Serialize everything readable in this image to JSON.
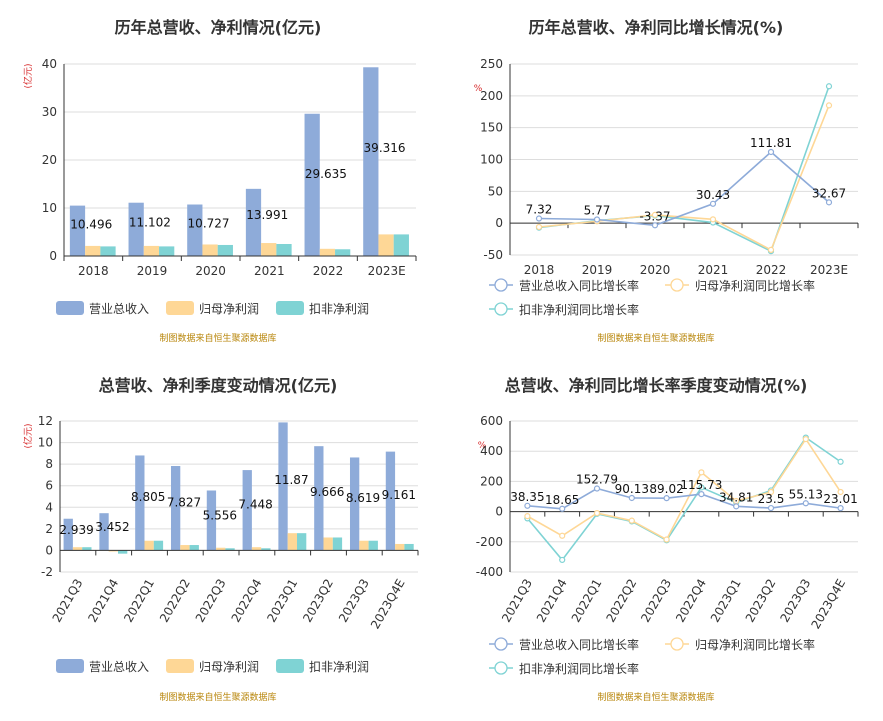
{
  "colors": {
    "revenue": "#8eabd9",
    "netprofit": "#fed796",
    "deducted": "#7fd3d4",
    "grid": "#dddddd",
    "axis": "#333333",
    "source": "#b8860b",
    "unit": "#d62728"
  },
  "source_text": "制图数据来自恒生聚源数据库",
  "chart_data": [
    {
      "type": "bar",
      "title": "历年总营收、净利情况(亿元)",
      "unit_label": "(亿元)",
      "categories": [
        "2018",
        "2019",
        "2020",
        "2021",
        "2022",
        "2023E"
      ],
      "ylim": [
        0,
        40
      ],
      "yticks": [
        0,
        10,
        20,
        30,
        40
      ],
      "series": [
        {
          "name": "营业总收入",
          "values": [
            10.496,
            11.102,
            10.727,
            13.991,
            29.635,
            39.316
          ]
        },
        {
          "name": "归母净利润",
          "values": [
            2.1,
            2.1,
            2.4,
            2.7,
            1.5,
            4.5
          ]
        },
        {
          "name": "扣非净利润",
          "values": [
            2.0,
            2.0,
            2.3,
            2.5,
            1.4,
            4.5
          ]
        }
      ],
      "data_labels": [
        "10.496",
        "11.102",
        "10.727",
        "13.991",
        "29.635",
        "39.316"
      ],
      "legend": "bottom",
      "grid": true
    },
    {
      "type": "line",
      "title": "历年总营收、净利同比增长情况(%)",
      "unit_label": "%",
      "categories": [
        "2018",
        "2019",
        "2020",
        "2021",
        "2022",
        "2023E"
      ],
      "ylim": [
        -50,
        250
      ],
      "yticks": [
        -50,
        0,
        50,
        100,
        150,
        200,
        250
      ],
      "series": [
        {
          "name": "营业总收入同比增长率",
          "values": [
            7.32,
            5.77,
            -3.37,
            30.43,
            111.81,
            32.67
          ]
        },
        {
          "name": "归母净利润同比增长率",
          "values": [
            -6,
            3,
            13,
            6,
            -42,
            185
          ]
        },
        {
          "name": "扣非净利润同比增长率",
          "values": [
            -7,
            4,
            12,
            1,
            -44,
            215
          ]
        }
      ],
      "data_labels": [
        "7.32",
        "5.77",
        "-3.37",
        "30.43",
        "111.81",
        "32.67"
      ],
      "legend": "bottom",
      "grid": true
    },
    {
      "type": "bar",
      "title": "总营收、净利季度变动情况(亿元)",
      "unit_label": "(亿元)",
      "categories": [
        "2021Q3",
        "2021Q4",
        "2022Q1",
        "2022Q2",
        "2022Q3",
        "2022Q4",
        "2023Q1",
        "2023Q2",
        "2023Q3",
        "2023Q4E"
      ],
      "ylim": [
        -2,
        12
      ],
      "yticks": [
        -2,
        0,
        2,
        4,
        6,
        8,
        10,
        12
      ],
      "series": [
        {
          "name": "营业总收入",
          "values": [
            2.939,
            3.452,
            8.805,
            7.827,
            5.556,
            7.448,
            11.87,
            9.666,
            8.619,
            9.161
          ]
        },
        {
          "name": "归母净利润",
          "values": [
            0.3,
            -0.1,
            0.9,
            0.5,
            0.25,
            0.3,
            1.6,
            1.2,
            0.9,
            0.6
          ]
        },
        {
          "name": "扣非净利润",
          "values": [
            0.3,
            -0.3,
            0.9,
            0.5,
            0.2,
            0.2,
            1.6,
            1.2,
            0.9,
            0.6
          ]
        }
      ],
      "data_labels": [
        "2.939",
        "3.452",
        "8.805",
        "7.827",
        "5.556",
        "7.448",
        "11.87",
        "9.666",
        "8.619",
        "9.161"
      ],
      "legend": "bottom",
      "grid": true
    },
    {
      "type": "line",
      "title": "总营收、净利同比增长率季度变动情况(%)",
      "unit_label": "%",
      "categories": [
        "2021Q3",
        "2021Q4",
        "2022Q1",
        "2022Q2",
        "2022Q3",
        "2022Q4",
        "2023Q1",
        "2023Q2",
        "2023Q3",
        "2023Q4E"
      ],
      "ylim": [
        -400,
        600
      ],
      "yticks": [
        -400,
        -200,
        0,
        200,
        400,
        600
      ],
      "series": [
        {
          "name": "营业总收入同比增长率",
          "values": [
            38.35,
            18.65,
            152.79,
            90.13,
            89.02,
            115.73,
            34.81,
            23.5,
            55.13,
            23.01
          ]
        },
        {
          "name": "归母净利润同比增长率",
          "values": [
            -30,
            -160,
            -10,
            -60,
            -185,
            260,
            70,
            130,
            480,
            130
          ]
        },
        {
          "name": "扣非净利润同比增长率",
          "values": [
            -45,
            -320,
            -15,
            -65,
            -190,
            160,
            60,
            140,
            490,
            330
          ]
        }
      ],
      "data_labels": [
        "38.35",
        "18.65",
        "152.79",
        "90.13",
        "89.02",
        "115.73",
        "34.81",
        "23.5",
        "55.13",
        "23.01"
      ],
      "legend": "bottom",
      "grid": true
    }
  ]
}
